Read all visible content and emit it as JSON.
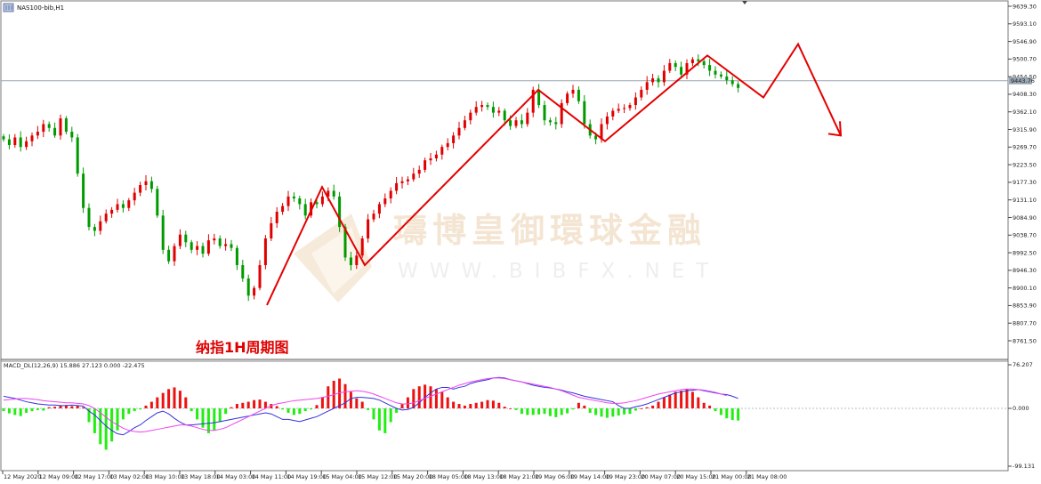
{
  "header": {
    "symbol_label": "NAS100-bib,H1",
    "menu_icon": "window-menu-icon"
  },
  "chart_title": "纳指1H周期图",
  "watermark": {
    "brand_cn": "璹博皇御環球金融",
    "url": "WWW.BIBFX.NET"
  },
  "price_axis": {
    "ticks": [
      "9639.30",
      "9593.10",
      "9546.90",
      "9500.70",
      "9454.50",
      "9408.30",
      "9362.10",
      "9315.90",
      "9269.70",
      "9223.50",
      "9177.30",
      "9131.10",
      "9084.90",
      "9038.70",
      "8992.50",
      "8946.30",
      "8900.10",
      "8853.90",
      "8807.70",
      "8761.50"
    ],
    "current_price": "9443.76",
    "current_price_value": 9443.76,
    "color_current_line": "#9aa7b4"
  },
  "macd_panel": {
    "label": "MACD_DL(12,26,9) 15.886 27.123 0.000 -22.475",
    "axis_ticks": [
      "76.207",
      "0.000",
      "-99.131"
    ]
  },
  "time_axis": {
    "labels": [
      "12 May 2020",
      "12 May 09:00",
      "12 May 17:00",
      "13 May 02:00",
      "13 May 10:00",
      "13 May 18:00",
      "14 May 03:00",
      "14 May 11:00",
      "14 May 19:00",
      "15 May 04:00",
      "15 May 12:00",
      "15 May 20:00",
      "18 May 05:00",
      "18 May 13:00",
      "18 May 21:00",
      "19 May 06:00",
      "19 May 14:00",
      "19 May 23:00",
      "20 May 07:00",
      "20 May 15:00",
      "21 May 00:00",
      "21 May 08:00"
    ]
  },
  "colors": {
    "bull": "#e00000",
    "bear": "#009a00",
    "zigzag": "#e40000",
    "macd_pos": "#ee1111",
    "macd_neg": "#22ee11",
    "macd_line": "#3333dd",
    "signal_line": "#ee44ee",
    "title": "#e00000"
  },
  "chart_data": {
    "type": "candlestick",
    "series_name": "NAS100-bib,H1",
    "ylim": [
      8745,
      9650
    ],
    "close_path": [
      9290,
      9275,
      9295,
      9270,
      9285,
      9300,
      9310,
      9330,
      9320,
      9300,
      9345,
      9310,
      9295,
      9200,
      9110,
      9060,
      9050,
      9075,
      9095,
      9105,
      9120,
      9110,
      9130,
      9150,
      9170,
      9180,
      9160,
      9090,
      9000,
      8970,
      9010,
      9040,
      9020,
      9000,
      9010,
      8990,
      9025,
      9030,
      9010,
      9015,
      9005,
      8960,
      8925,
      8880,
      8900,
      8960,
      9030,
      9070,
      9100,
      9115,
      9140,
      9135,
      9120,
      9090,
      9125,
      9120,
      9140,
      9155,
      9140,
      9060,
      8980,
      8960,
      8985,
      9030,
      9080,
      9095,
      9120,
      9135,
      9155,
      9175,
      9180,
      9185,
      9200,
      9210,
      9235,
      9240,
      9250,
      9270,
      9280,
      9300,
      9320,
      9340,
      9360,
      9375,
      9380,
      9375,
      9360,
      9365,
      9340,
      9325,
      9340,
      9330,
      9360,
      9420,
      9380,
      9340,
      9335,
      9330,
      9385,
      9410,
      9420,
      9390,
      9330,
      9300,
      9290,
      9330,
      9350,
      9365,
      9370,
      9372,
      9380,
      9400,
      9420,
      9440,
      9450,
      9440,
      9470,
      9490,
      9480,
      9460,
      9490,
      9500,
      9495,
      9485,
      9470,
      9460,
      9455,
      9445,
      9435,
      9425
    ],
    "zigzag_prices": [
      8855,
      9165,
      8960,
      9420,
      9285,
      9510,
      9400,
      9540,
      9300
    ],
    "macd": {
      "hist": [
        -5,
        -9,
        -12,
        -14,
        -8,
        -5,
        -3,
        -4,
        2,
        3,
        5,
        6,
        4,
        5,
        2,
        -25,
        -45,
        -65,
        -75,
        -60,
        -40,
        -20,
        -10,
        -5,
        -2,
        5,
        12,
        20,
        28,
        35,
        38,
        32,
        20,
        -5,
        -20,
        -35,
        -45,
        -40,
        -25,
        -10,
        2,
        8,
        10,
        12,
        15,
        16,
        12,
        8,
        4,
        -2,
        -8,
        -12,
        -10,
        -5,
        -2,
        6,
        20,
        40,
        50,
        54,
        44,
        30,
        18,
        12,
        -3,
        -20,
        -40,
        -45,
        -25,
        -8,
        8,
        20,
        35,
        40,
        43,
        40,
        35,
        30,
        20,
        12,
        8,
        5,
        8,
        10,
        12,
        15,
        14,
        10,
        3,
        0,
        -3,
        -10,
        -12,
        -12,
        -11,
        -10,
        -14,
        -16,
        -12,
        -9,
        -2,
        10,
        5,
        -8,
        -12,
        -15,
        -17,
        -15,
        -13,
        -11,
        -10,
        -4,
        0,
        2,
        5,
        12,
        20,
        25,
        30,
        32,
        35,
        30,
        20,
        10,
        5,
        -5,
        -12,
        -18,
        -21,
        -22
      ],
      "macd_line": [
        22,
        20,
        18,
        15,
        12,
        10,
        8,
        7,
        6,
        6,
        5,
        5,
        6,
        5,
        4,
        -5,
        -12,
        -22,
        -32,
        -40,
        -46,
        -48,
        -42,
        -35,
        -30,
        -22,
        -15,
        -8,
        -5,
        -10,
        -18,
        -25,
        -30,
        -30,
        -29,
        -28,
        -27,
        -26,
        -24,
        -22,
        -20,
        -18,
        -16,
        -14,
        -12,
        -10,
        -8,
        -10,
        -15,
        -20,
        -20,
        -22,
        -24,
        -21,
        -18,
        -15,
        -10,
        -5,
        0,
        5,
        10,
        18,
        20,
        20,
        19,
        18,
        15,
        10,
        5,
        0,
        -3,
        -2,
        2,
        10,
        20,
        28,
        35,
        38,
        38,
        35,
        38,
        40,
        45,
        48,
        50,
        52,
        55,
        56,
        55,
        52,
        50,
        48,
        45,
        42,
        40,
        38,
        37,
        35,
        33,
        30,
        28,
        25,
        22,
        20,
        18,
        16,
        14,
        12,
        5,
        0,
        0,
        3,
        5,
        8,
        12,
        16,
        20,
        24,
        28,
        30,
        32,
        33,
        34,
        32,
        30,
        28,
        26,
        25,
        22,
        18
      ],
      "signal_line": [
        15,
        16,
        17,
        18,
        18,
        17,
        16,
        14,
        13,
        12,
        11,
        10,
        10,
        9,
        8,
        5,
        0,
        -8,
        -16,
        -24,
        -30,
        -36,
        -40,
        -42,
        -43,
        -42,
        -40,
        -38,
        -36,
        -34,
        -32,
        -30,
        -30,
        -32,
        -35,
        -38,
        -40,
        -40,
        -38,
        -35,
        -30,
        -25,
        -20,
        -15,
        -10,
        -5,
        0,
        5,
        8,
        10,
        12,
        14,
        15,
        16,
        17,
        18,
        20,
        22,
        25,
        28,
        30,
        31,
        32,
        31,
        29,
        26,
        22,
        18,
        14,
        10,
        8,
        8,
        10,
        14,
        18,
        22,
        26,
        30,
        34,
        38,
        42,
        45,
        48,
        50,
        52,
        54,
        55,
        55,
        54,
        52,
        50,
        48,
        46,
        44,
        42,
        40,
        38,
        35,
        32,
        28,
        24,
        20,
        18,
        16,
        14,
        12,
        10,
        9,
        9,
        10,
        12,
        14,
        17,
        20,
        23,
        26,
        28,
        30,
        32,
        34,
        35,
        35,
        34,
        33,
        31,
        29,
        26,
        23
      ]
    }
  }
}
